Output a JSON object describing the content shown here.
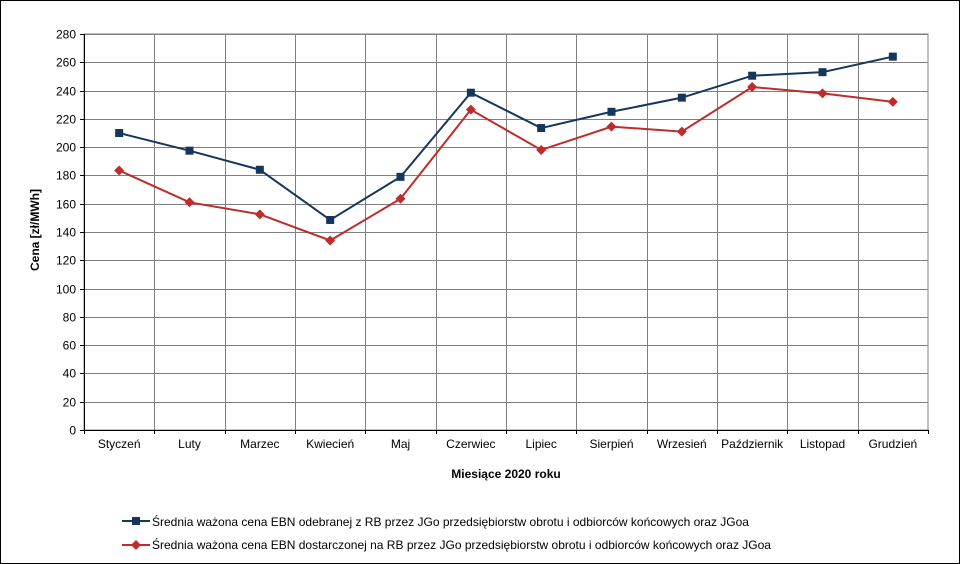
{
  "chart_data": {
    "type": "line",
    "title": "",
    "xlabel": "Miesiące 2020  roku",
    "ylabel": "Cena [zł/MWh]",
    "ylim": [
      0,
      280
    ],
    "yticks": [
      0,
      20,
      40,
      60,
      80,
      100,
      120,
      140,
      160,
      180,
      200,
      220,
      240,
      260,
      280
    ],
    "grid": true,
    "legend_position": "bottom",
    "categories": [
      "Styczeń",
      "Luty",
      "Marzec",
      "Kwiecień",
      "Maj",
      "Czerwiec",
      "Lipiec",
      "Sierpień",
      "Wrzesień",
      "Październik",
      "Listopad",
      "Grudzień"
    ],
    "series": [
      {
        "name": "Średnia ważona cena EBN odebranej z RB przez JGo przedsiębiorstw obrotu i odbiorców końcowych oraz JGoa",
        "color": "#17365D",
        "marker": "square",
        "values": [
          210,
          197.5,
          184,
          148.5,
          179,
          238.5,
          213.5,
          225,
          235,
          250.5,
          253,
          264
        ]
      },
      {
        "name": "Średnia ważona cena EBN dostarczonej na RB przez JGo przedsiębiorstw obrotu i odbiorców końcowych oraz JGoa",
        "color": "#BE2C2C",
        "marker": "diamond",
        "values": [
          183.5,
          161,
          152.5,
          134,
          163.5,
          226.5,
          198,
          214.5,
          211,
          242.5,
          238,
          232
        ]
      }
    ]
  }
}
